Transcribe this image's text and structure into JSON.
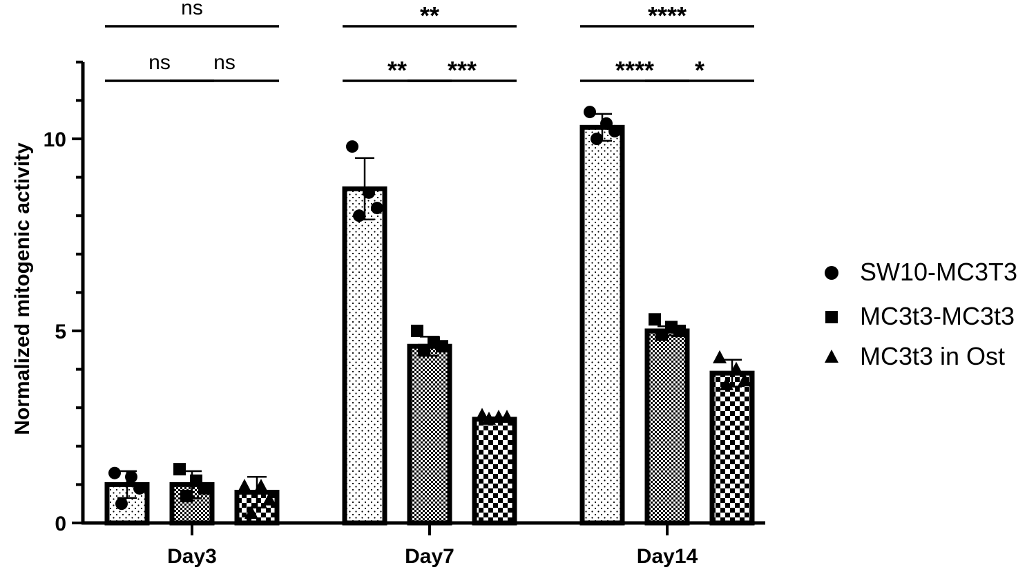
{
  "chart_data": {
    "type": "bar",
    "ylabel": "Normalized mitogenic activity",
    "xlabel": "",
    "ylim": [
      0,
      12
    ],
    "yticks": [
      0,
      5,
      10
    ],
    "grid": false,
    "legend_position": "right",
    "categories": [
      "Day3",
      "Day7",
      "Day14"
    ],
    "series": [
      {
        "name": "SW10-MC3T3",
        "marker": "circle",
        "pattern": "fine-dots",
        "values": [
          1.0,
          8.7,
          10.3
        ],
        "error": [
          0.35,
          0.8,
          0.35
        ],
        "points": [
          [
            1.3,
            1.2,
            0.9,
            0.5
          ],
          [
            9.8,
            8.6,
            8.2,
            8.0
          ],
          [
            10.7,
            10.4,
            10.2,
            10.0
          ]
        ]
      },
      {
        "name": "MC3t3-MC3t3",
        "marker": "square",
        "pattern": "fine-checker",
        "values": [
          1.0,
          4.6,
          5.0
        ],
        "error": [
          0.35,
          0.25,
          0.12
        ],
        "points": [
          [
            1.4,
            1.1,
            0.9,
            0.7
          ],
          [
            5.0,
            4.7,
            4.6,
            4.5
          ],
          [
            5.3,
            5.1,
            5.0,
            4.9
          ]
        ]
      },
      {
        "name": "MC3t3 in Ost",
        "marker": "triangle",
        "pattern": "coarse-checker",
        "values": [
          0.8,
          2.7,
          3.9
        ],
        "error": [
          0.4,
          0.05,
          0.35
        ],
        "points": [
          [
            0.95,
            0.95,
            0.6,
            0.25
          ],
          [
            2.8,
            2.75,
            2.75,
            2.7
          ],
          [
            4.3,
            4.0,
            3.7,
            3.6
          ]
        ]
      }
    ],
    "significance": [
      {
        "category": "Day3",
        "from": 0,
        "to": 2,
        "level": "top",
        "label": "ns"
      },
      {
        "category": "Day3",
        "from": 0,
        "to": 1,
        "level": "lower",
        "label": "ns"
      },
      {
        "category": "Day3",
        "from": 1,
        "to": 2,
        "level": "lower",
        "label": "ns"
      },
      {
        "category": "Day7",
        "from": 0,
        "to": 2,
        "level": "top",
        "label": "**"
      },
      {
        "category": "Day7",
        "from": 0,
        "to": 1,
        "level": "lower",
        "label": "**"
      },
      {
        "category": "Day7",
        "from": 1,
        "to": 2,
        "level": "lower",
        "label": "***"
      },
      {
        "category": "Day14",
        "from": 0,
        "to": 2,
        "level": "top",
        "label": "****"
      },
      {
        "category": "Day14",
        "from": 0,
        "to": 1,
        "level": "lower",
        "label": "****"
      },
      {
        "category": "Day14",
        "from": 1,
        "to": 2,
        "level": "lower",
        "label": "*"
      }
    ]
  }
}
